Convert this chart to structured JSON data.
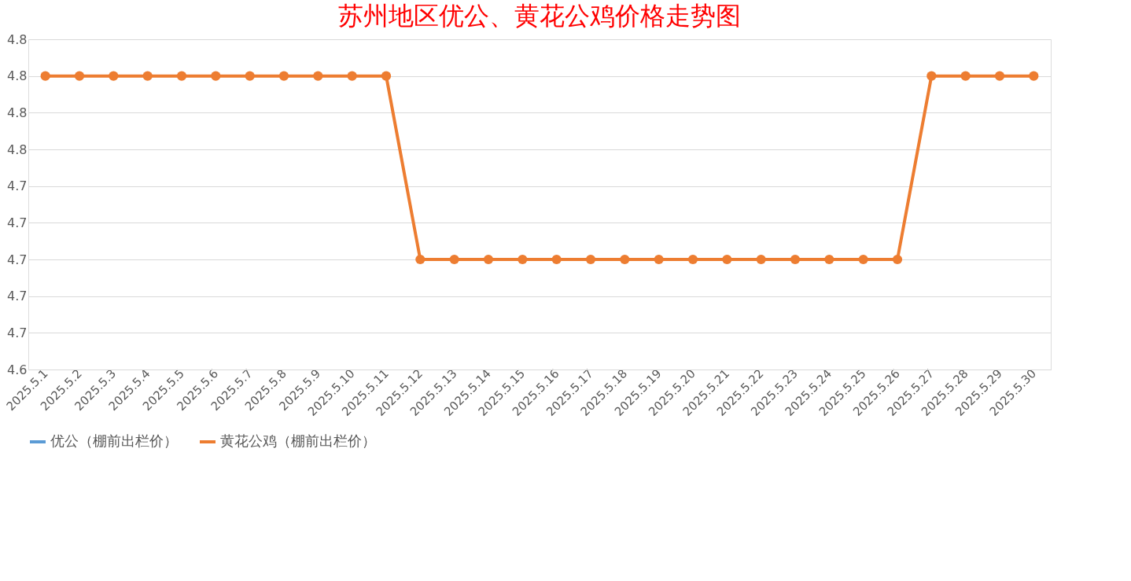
{
  "chart_data": {
    "type": "line",
    "title": "苏州地区优公、黄花公鸡价格走势图",
    "categories": [
      "2025.5.1",
      "2025.5.2",
      "2025.5.3",
      "2025.5.4",
      "2025.5.5",
      "2025.5.6",
      "2025.5.7",
      "2025.5.8",
      "2025.5.9",
      "2025.5.10",
      "2025.5.11",
      "2025.5.12",
      "2025.5.13",
      "2025.5.14",
      "2025.5.15",
      "2025.5.16",
      "2025.5.17",
      "2025.5.18",
      "2025.5.19",
      "2025.5.20",
      "2025.5.21",
      "2025.5.22",
      "2025.5.23",
      "2025.5.24",
      "2025.5.25",
      "2025.5.26",
      "2025.5.27",
      "2025.5.28",
      "2025.5.29",
      "2025.5.30"
    ],
    "series": [
      {
        "name": "优公（棚前出栏价）",
        "color": "#5b9bd5",
        "values": [
          null,
          null,
          null,
          null,
          null,
          null,
          null,
          null,
          null,
          null,
          null,
          null,
          null,
          null,
          null,
          null,
          null,
          null,
          null,
          null,
          null,
          null,
          null,
          null,
          null,
          null,
          null,
          null,
          null,
          null
        ]
      },
      {
        "name": "黄花公鸡（棚前出栏价）",
        "color": "#ed7d31",
        "values": [
          4.8,
          4.8,
          4.8,
          4.8,
          4.8,
          4.8,
          4.8,
          4.8,
          4.8,
          4.8,
          4.8,
          4.7,
          4.7,
          4.7,
          4.7,
          4.7,
          4.7,
          4.7,
          4.7,
          4.7,
          4.7,
          4.7,
          4.7,
          4.7,
          4.7,
          4.7,
          4.8,
          4.8,
          4.8,
          4.8
        ]
      }
    ],
    "ylim": [
      4.64,
      4.82
    ],
    "yticks": [
      {
        "value": 4.64,
        "label": "4.6"
      },
      {
        "value": 4.66,
        "label": "4.7"
      },
      {
        "value": 4.68,
        "label": "4.7"
      },
      {
        "value": 4.7,
        "label": "4.7"
      },
      {
        "value": 4.72,
        "label": "4.7"
      },
      {
        "value": 4.74,
        "label": "4.7"
      },
      {
        "value": 4.76,
        "label": "4.8"
      },
      {
        "value": 4.78,
        "label": "4.8"
      },
      {
        "value": 4.8,
        "label": "4.8"
      },
      {
        "value": 4.82,
        "label": "4.8"
      }
    ],
    "grid": "y",
    "legend": "bottom",
    "marker": "circle",
    "line_style": "solid"
  }
}
